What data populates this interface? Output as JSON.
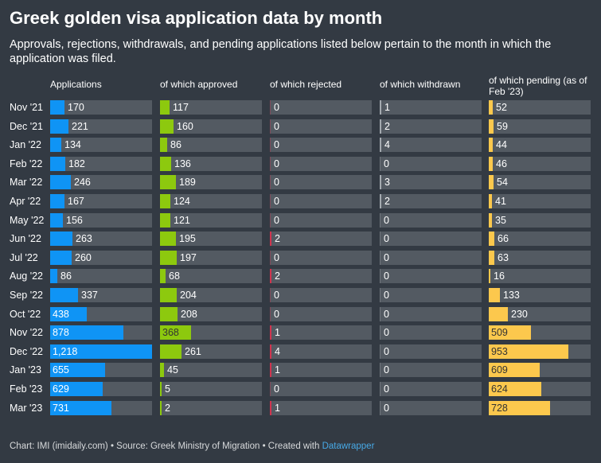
{
  "title": "Greek golden visa application data by month",
  "subtitle": "Approvals, rejections, withdrawals, and pending applications listed below pertain to the month in which the application was filed.",
  "footer": {
    "prefix": "Chart: IMI (imidaily.com) • Source: Greek Ministry of Migration • Created with ",
    "link": "Datawrapper"
  },
  "colors": {
    "applications": "#0f94f5",
    "approved": "#8dc90e",
    "rejected": "#d0344f",
    "withdrawn": "#a4aab0",
    "pending": "#fcc84d",
    "cell_background": "#535a62",
    "page_background": "#333a43"
  },
  "chart_data": {
    "type": "table",
    "categories": [
      "Nov '21",
      "Dec '21",
      "Jan '22",
      "Feb '22",
      "Mar '22",
      "Apr '22",
      "May '22",
      "Jun '22",
      "Jul '22",
      "Aug '22",
      "Sep '22",
      "Oct '22",
      "Nov '22",
      "Dec '22",
      "Jan '23",
      "Feb '23",
      "Mar '23"
    ],
    "series": [
      {
        "key": "applications",
        "name": "Applications",
        "max": 1218,
        "values": [
          170,
          221,
          134,
          182,
          246,
          167,
          156,
          263,
          260,
          86,
          337,
          438,
          878,
          1218,
          655,
          629,
          731
        ],
        "labels": [
          "170",
          "221",
          "134",
          "182",
          "246",
          "167",
          "156",
          "263",
          "260",
          "86",
          "337",
          "438",
          "878",
          "1,218",
          "655",
          "629",
          "731"
        ]
      },
      {
        "key": "approved",
        "name": "of which approved",
        "max": 1218,
        "values": [
          117,
          160,
          86,
          136,
          189,
          124,
          121,
          195,
          197,
          68,
          204,
          208,
          368,
          261,
          45,
          5,
          2
        ],
        "labels": [
          "117",
          "160",
          "86",
          "136",
          "189",
          "124",
          "121",
          "195",
          "197",
          "68",
          "204",
          "208",
          "368",
          "261",
          "45",
          "5",
          "2"
        ]
      },
      {
        "key": "rejected",
        "name": "of which rejected",
        "max": 1218,
        "values": [
          0,
          0,
          0,
          0,
          0,
          0,
          0,
          2,
          0,
          2,
          0,
          0,
          1,
          4,
          1,
          0,
          1
        ],
        "labels": [
          "0",
          "0",
          "0",
          "0",
          "0",
          "0",
          "0",
          "2",
          "0",
          "2",
          "0",
          "0",
          "1",
          "4",
          "1",
          "0",
          "1"
        ]
      },
      {
        "key": "withdrawn",
        "name": "of which withdrawn",
        "max": 1218,
        "values": [
          1,
          2,
          4,
          0,
          3,
          2,
          0,
          0,
          0,
          0,
          0,
          0,
          0,
          0,
          0,
          0,
          0
        ],
        "labels": [
          "1",
          "2",
          "4",
          "0",
          "3",
          "2",
          "0",
          "0",
          "0",
          "0",
          "0",
          "0",
          "0",
          "0",
          "0",
          "0",
          "0"
        ]
      },
      {
        "key": "pending",
        "name": "of which pending (as of Feb '23)",
        "max": 1218,
        "values": [
          52,
          59,
          44,
          46,
          54,
          41,
          35,
          66,
          63,
          16,
          133,
          230,
          509,
          953,
          609,
          624,
          728
        ],
        "labels": [
          "52",
          "59",
          "44",
          "46",
          "54",
          "41",
          "35",
          "66",
          "63",
          "16",
          "133",
          "230",
          "509",
          "953",
          "609",
          "624",
          "728"
        ]
      }
    ]
  }
}
